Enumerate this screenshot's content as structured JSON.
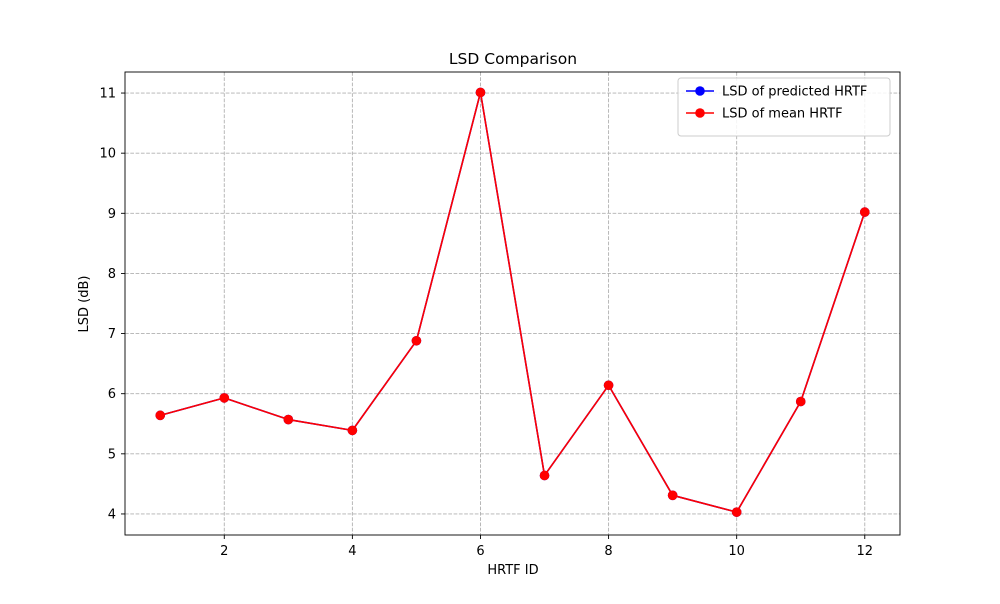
{
  "chart_data": {
    "type": "line",
    "title": "LSD Comparison",
    "xlabel": "HRTF ID",
    "ylabel": "LSD (dB)",
    "x": [
      1,
      2,
      3,
      4,
      5,
      6,
      7,
      8,
      9,
      10,
      11,
      12
    ],
    "xticks": [
      2,
      4,
      6,
      8,
      10,
      12
    ],
    "yticks": [
      4,
      5,
      6,
      7,
      8,
      9,
      10,
      11
    ],
    "xlim": [
      0.45,
      12.55
    ],
    "ylim": [
      3.65,
      11.35
    ],
    "grid": true,
    "legend_position": "top-right",
    "series": [
      {
        "name": "LSD of predicted HRTF",
        "color": "#0000ff",
        "marker": "circle",
        "values": [
          5.64,
          5.93,
          5.57,
          5.39,
          6.88,
          11.01,
          4.64,
          6.14,
          4.31,
          4.03,
          5.87,
          9.02
        ]
      },
      {
        "name": "LSD of mean HRTF",
        "color": "#ff0000",
        "marker": "circle",
        "values": [
          5.64,
          5.93,
          5.57,
          5.39,
          6.88,
          11.01,
          4.64,
          6.14,
          4.31,
          4.03,
          5.87,
          9.02
        ]
      }
    ]
  }
}
